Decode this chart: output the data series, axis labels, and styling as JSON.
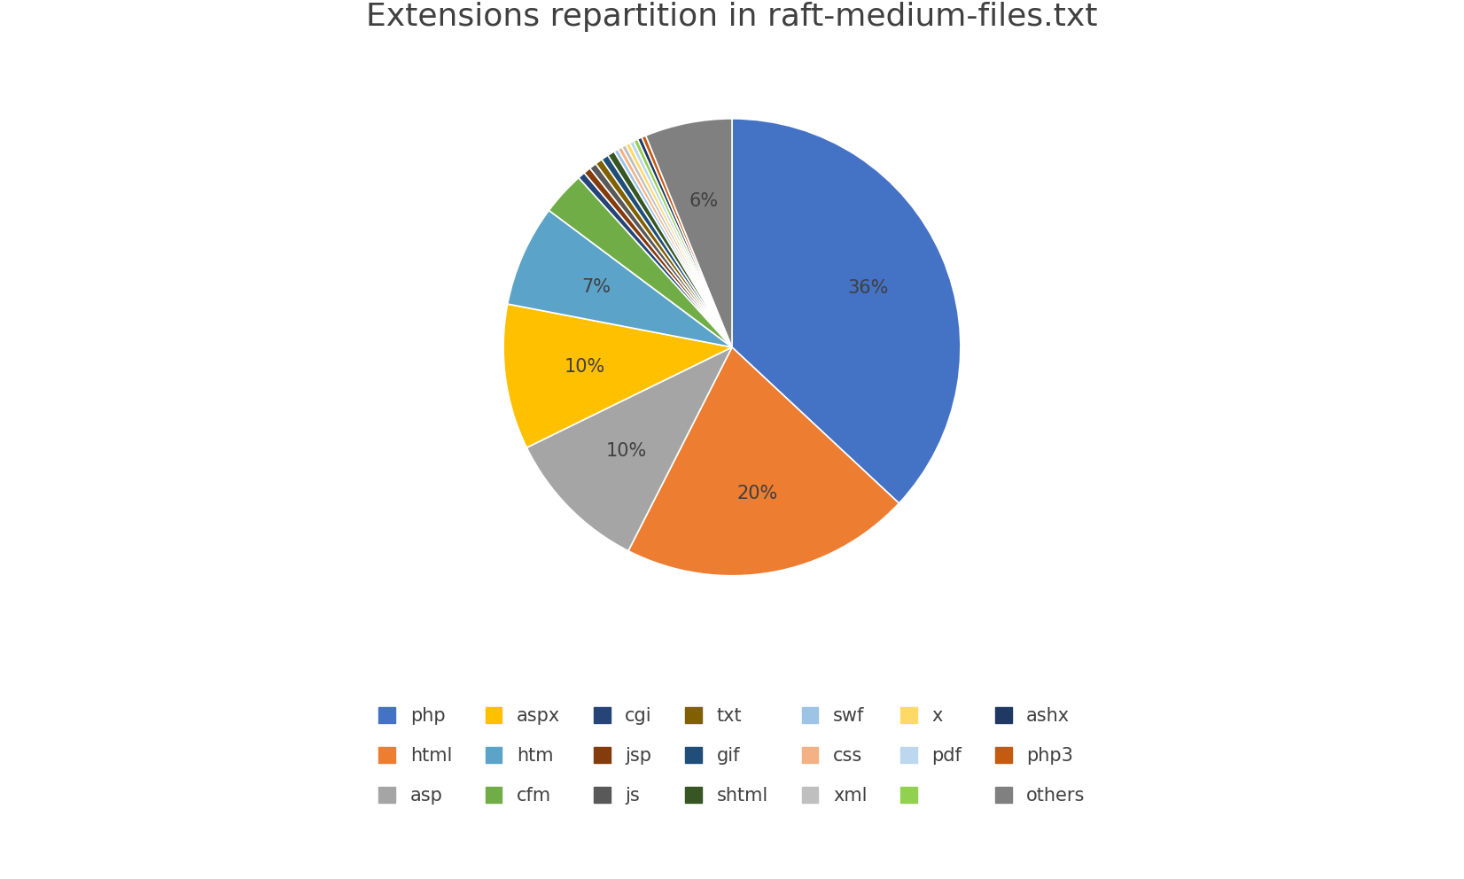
{
  "title": "Extensions repartition in raft-medium-files.txt",
  "labels": [
    "php",
    "html",
    "asp",
    "aspx",
    "htm",
    "cfm",
    "cgi",
    "jsp",
    "js",
    "txt",
    "gif",
    "shtml",
    "swf",
    "css",
    "xml",
    "x",
    "pdf",
    "",
    "ashx",
    "php3",
    "others"
  ],
  "values": [
    36,
    20,
    10,
    10,
    7,
    3.0,
    0.5,
    0.5,
    0.5,
    0.5,
    0.5,
    0.5,
    0.3,
    0.3,
    0.3,
    0.3,
    0.3,
    0.3,
    0.3,
    0.3,
    6.0
  ],
  "colors": [
    "#4472C4",
    "#ED7D31",
    "#A5A5A5",
    "#FFC000",
    "#5BA3C9",
    "#70AD47",
    "#264478",
    "#843C0C",
    "#595959",
    "#806000",
    "#1F4E79",
    "#375623",
    "#9DC3E6",
    "#F4B183",
    "#BFBFBF",
    "#FFD966",
    "#BDD7EE",
    "#92D050",
    "#1F3864",
    "#C55A11",
    "#808080"
  ],
  "autopct_labels": [
    "36%",
    "20%",
    "10%",
    "10%",
    "7%",
    "",
    "",
    "",
    "",
    "",
    "",
    "",
    "",
    "",
    "",
    "",
    "",
    "",
    "",
    "",
    "6%"
  ],
  "background_color": "#FFFFFF",
  "title_fontsize": 26,
  "legend_fontsize": 15,
  "legend_row1": [
    "php",
    "html",
    "asp",
    "aspx",
    "htm",
    "cfm",
    "cgi"
  ],
  "legend_row2": [
    "jsp",
    "js",
    "txt",
    "gif",
    "shtml",
    "swf",
    "css"
  ],
  "legend_row3": [
    "xml",
    "x",
    "pdf",
    "",
    "ashx",
    "php3",
    "others"
  ]
}
